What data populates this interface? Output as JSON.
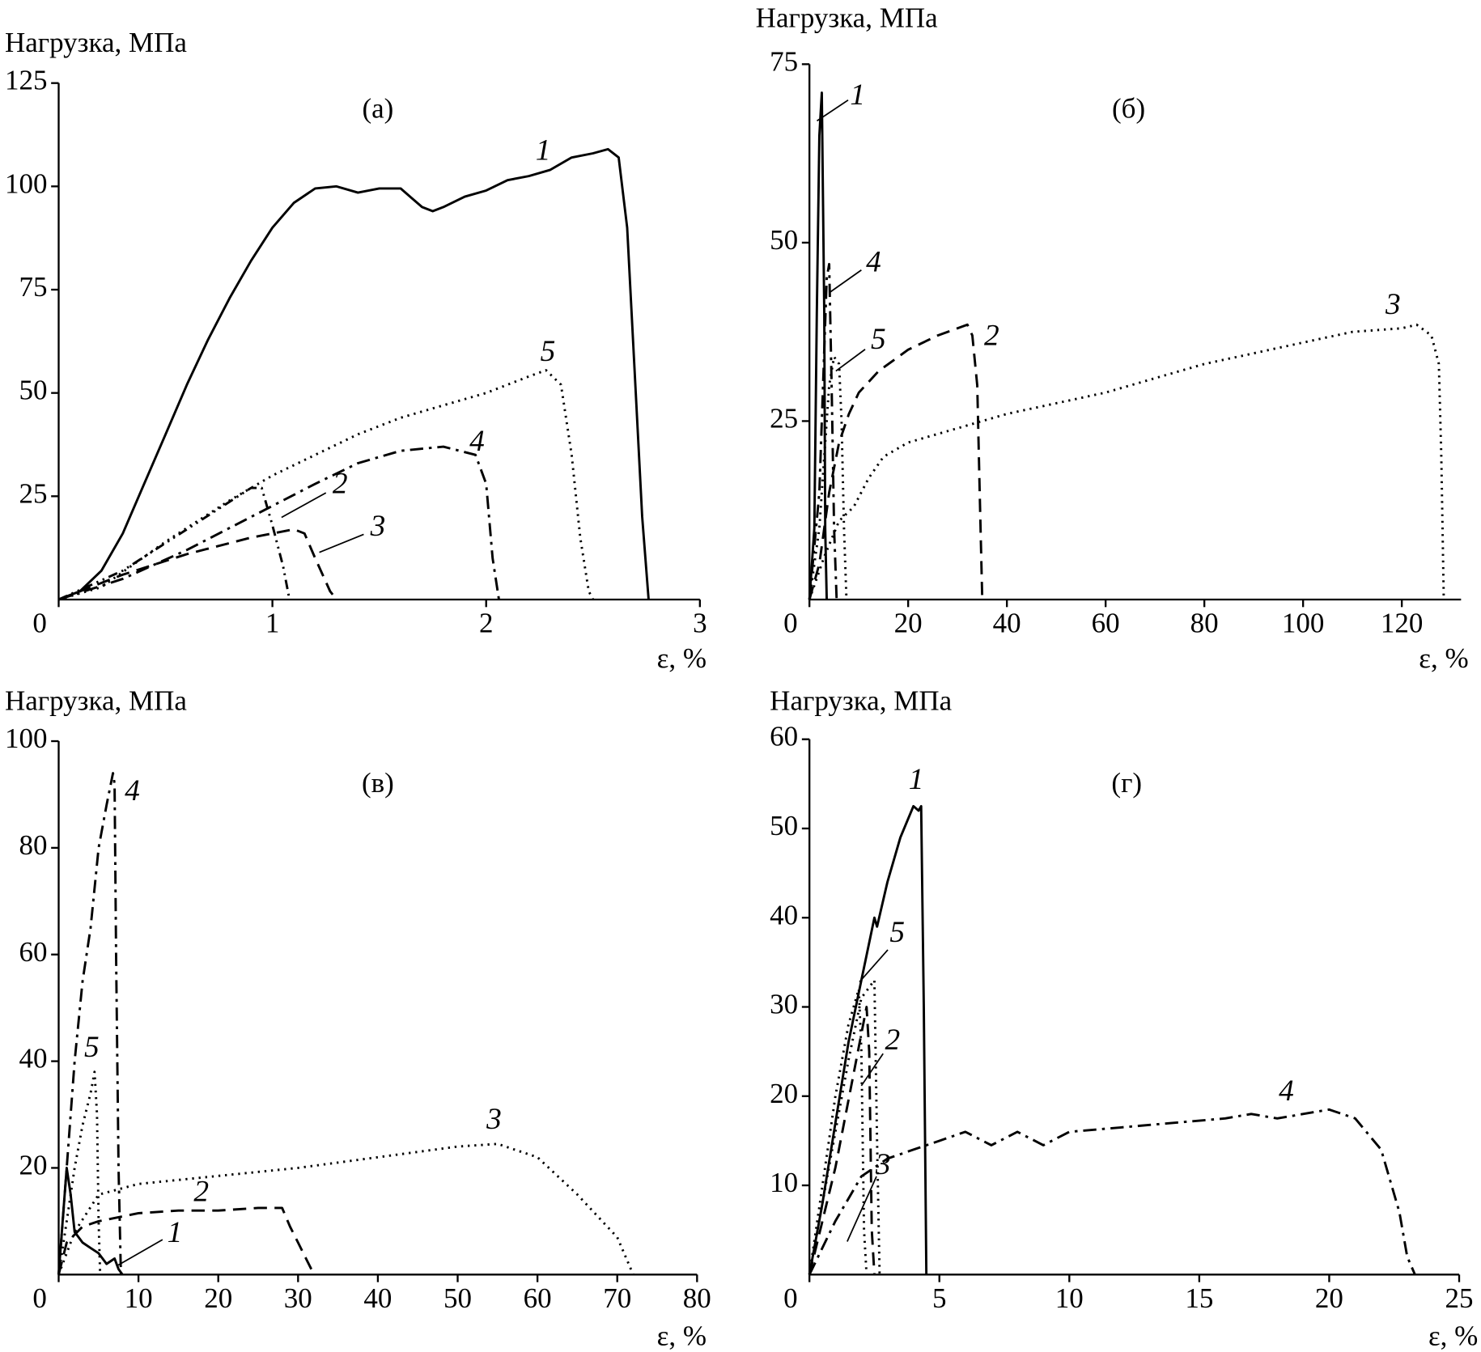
{
  "chart_data": [
    {
      "type": "line",
      "title": "(а)",
      "y_label": "Нагрузка, МПа",
      "x_label": "ε, %",
      "xlim": [
        0,
        3
      ],
      "ylim": [
        0,
        125
      ],
      "xticks": [
        0,
        1,
        2,
        3
      ],
      "yticks": [
        25,
        50,
        75,
        100,
        125
      ],
      "series": [
        {
          "name": "1",
          "color": "#000000",
          "style": "solid",
          "x": [
            0,
            0.1,
            0.2,
            0.3,
            0.4,
            0.5,
            0.6,
            0.7,
            0.8,
            0.9,
            1.0,
            1.1,
            1.2,
            1.3,
            1.4,
            1.5,
            1.6,
            1.7,
            1.75,
            1.8,
            1.9,
            2.0,
            2.1,
            2.2,
            2.3,
            2.4,
            2.5,
            2.57,
            2.62,
            2.66,
            2.7,
            2.73,
            2.76
          ],
          "values": [
            0,
            2,
            7,
            16,
            28,
            40,
            52,
            63,
            73,
            82,
            90,
            96,
            99.5,
            100,
            98.5,
            99.5,
            99.5,
            95,
            94,
            95,
            97.5,
            99,
            101.5,
            102.5,
            104,
            107,
            108,
            109,
            107,
            90,
            50,
            20,
            0
          ]
        },
        {
          "name": "2",
          "color": "#000000",
          "style": "dashdotdot",
          "x": [
            0,
            0.3,
            0.6,
            0.9,
            0.95,
            1.0,
            1.05,
            1.08
          ],
          "values": [
            0,
            7,
            17,
            27,
            27,
            18,
            8,
            0
          ]
        },
        {
          "name": "3",
          "color": "#000000",
          "style": "dashed",
          "x": [
            0,
            0.3,
            0.6,
            0.9,
            1.1,
            1.15,
            1.2,
            1.27,
            1.3
          ],
          "values": [
            0,
            6,
            11,
            15,
            17,
            16,
            10,
            2,
            0
          ]
        },
        {
          "name": "4",
          "color": "#000000",
          "style": "dashdot",
          "x": [
            0,
            0.3,
            0.6,
            0.9,
            1.2,
            1.4,
            1.6,
            1.8,
            1.95,
            2.0,
            2.03,
            2.06
          ],
          "values": [
            0,
            5,
            12,
            20,
            28,
            33,
            36,
            37,
            35,
            28,
            10,
            0
          ]
        },
        {
          "name": "5",
          "color": "#000000",
          "style": "dotted",
          "x": [
            0,
            0.2,
            0.5,
            0.8,
            1.0,
            1.2,
            1.4,
            1.6,
            1.8,
            2.0,
            2.2,
            2.28,
            2.35,
            2.4,
            2.44,
            2.48,
            2.5
          ],
          "values": [
            0,
            3,
            14,
            24,
            30,
            35,
            40,
            44,
            47,
            50,
            54,
            55.5,
            52,
            35,
            15,
            2,
            0
          ]
        }
      ]
    },
    {
      "type": "line",
      "title": "(б)",
      "y_label": "Нагрузка, МПа",
      "x_label": "ε, %",
      "xlim": [
        0,
        132
      ],
      "ylim": [
        0,
        75
      ],
      "xticks": [
        0,
        20,
        40,
        60,
        80,
        100,
        120
      ],
      "yticks": [
        25,
        50,
        75
      ],
      "series": [
        {
          "name": "1",
          "color": "#000000",
          "style": "solid",
          "x": [
            0,
            1,
            1.5,
            2,
            2.5,
            3,
            3.2,
            3.5
          ],
          "values": [
            0,
            10,
            40,
            65,
            71,
            40,
            10,
            0
          ]
        },
        {
          "name": "2",
          "color": "#000000",
          "style": "dashed",
          "x": [
            0,
            2,
            4,
            6,
            8,
            10,
            14,
            20,
            26,
            30,
            32,
            33,
            34,
            34.5,
            35
          ],
          "values": [
            0,
            5,
            15,
            22,
            26,
            29,
            32,
            35,
            37,
            38,
            38.5,
            37,
            30,
            15,
            0
          ]
        },
        {
          "name": "3",
          "color": "#000000",
          "style": "dotted",
          "x": [
            0,
            3,
            6,
            9,
            12,
            15,
            20,
            30,
            40,
            50,
            60,
            70,
            80,
            90,
            100,
            110,
            120,
            123,
            126,
            127.5,
            128,
            128.5
          ],
          "values": [
            0,
            6,
            11,
            13,
            17,
            20,
            22,
            24,
            26,
            27.5,
            29,
            31,
            33,
            34.5,
            36,
            37.5,
            38,
            38.5,
            37,
            33,
            20,
            0
          ]
        },
        {
          "name": "4",
          "color": "#000000",
          "style": "dashdot",
          "x": [
            0,
            2,
            3,
            3.5,
            4,
            4.5,
            5,
            5.5
          ],
          "values": [
            0,
            15,
            35,
            45,
            47,
            30,
            10,
            0
          ]
        },
        {
          "name": "5",
          "color": "#000000",
          "style": "dotted",
          "x": [
            0,
            2,
            4,
            5,
            6,
            6.5,
            7,
            7.5
          ],
          "values": [
            0,
            10,
            30,
            34,
            33,
            25,
            10,
            0
          ]
        }
      ]
    },
    {
      "type": "line",
      "title": "(в)",
      "y_label": "Нагрузка, МПа",
      "x_label": "ε, %",
      "xlim": [
        0,
        80
      ],
      "ylim": [
        0,
        100
      ],
      "xticks": [
        0,
        10,
        20,
        30,
        40,
        50,
        60,
        70,
        80
      ],
      "yticks": [
        20,
        40,
        60,
        80,
        100
      ],
      "series": [
        {
          "name": "1",
          "color": "#000000",
          "style": "solid",
          "x": [
            0,
            0.5,
            1,
            1.5,
            2,
            3,
            4,
            5,
            6,
            7,
            7.5,
            8
          ],
          "values": [
            0,
            10,
            20,
            15,
            8,
            6,
            5,
            4,
            2,
            3,
            1,
            0
          ]
        },
        {
          "name": "2",
          "color": "#000000",
          "style": "dashed",
          "x": [
            0,
            1,
            3,
            5,
            10,
            15,
            20,
            25,
            28,
            29,
            30,
            31,
            32
          ],
          "values": [
            0,
            6,
            9,
            10,
            11.5,
            12,
            12,
            12.5,
            12.5,
            9,
            6,
            3,
            0
          ]
        },
        {
          "name": "3",
          "color": "#000000",
          "style": "dotted",
          "x": [
            0,
            2,
            5,
            10,
            20,
            30,
            40,
            50,
            55,
            60,
            65,
            70,
            72
          ],
          "values": [
            0,
            8,
            15,
            17,
            18.5,
            20,
            22,
            24,
            24.5,
            22,
            15,
            7,
            0
          ]
        },
        {
          "name": "4",
          "color": "#000000",
          "style": "dashdot",
          "x": [
            0,
            1,
            2,
            3,
            4,
            5,
            6,
            6.8,
            7,
            7.2,
            7.5,
            7.8
          ],
          "values": [
            0,
            20,
            40,
            55,
            65,
            80,
            88,
            94,
            92,
            60,
            20,
            0
          ]
        },
        {
          "name": "5",
          "color": "#000000",
          "style": "dotted",
          "x": [
            0,
            1,
            2,
            3,
            4,
            4.5,
            4.8,
            5,
            5.2
          ],
          "values": [
            0,
            10,
            20,
            28,
            34,
            38,
            30,
            10,
            0
          ]
        }
      ]
    },
    {
      "type": "line",
      "title": "(г)",
      "y_label": "Нагрузка, МПа",
      "x_label": "ε, %",
      "xlim": [
        0,
        25
      ],
      "ylim": [
        0,
        60
      ],
      "xticks": [
        0,
        5,
        10,
        15,
        20,
        25
      ],
      "yticks": [
        10,
        20,
        30,
        40,
        50,
        60
      ],
      "series": [
        {
          "name": "1",
          "color": "#000000",
          "style": "solid",
          "x": [
            0,
            0.5,
            1,
            1.5,
            2,
            2.5,
            2.6,
            3,
            3.5,
            4,
            4.2,
            4.3,
            4.4,
            4.5
          ],
          "values": [
            0,
            8,
            17,
            26,
            33,
            40,
            39,
            44,
            49,
            52.5,
            52,
            52.5,
            30,
            0
          ]
        },
        {
          "name": "2",
          "color": "#000000",
          "style": "dashed",
          "x": [
            0,
            1,
            1.8,
            2.2,
            2.3,
            2.4,
            2.5
          ],
          "values": [
            0,
            12,
            24,
            30,
            25,
            5,
            0
          ]
        },
        {
          "name": "3",
          "color": "#000000",
          "style": "dotted",
          "x": [
            0,
            0.5,
            1,
            1.5,
            1.9,
            2.0,
            2.1,
            2.2
          ],
          "values": [
            0,
            10,
            20,
            28,
            32,
            25,
            5,
            0
          ]
        },
        {
          "name": "4",
          "color": "#000000",
          "style": "dashdot",
          "x": [
            0,
            1,
            2,
            3,
            4,
            5,
            6,
            7,
            8,
            9,
            10,
            12,
            14,
            16,
            17,
            18,
            20,
            21,
            22,
            22.7,
            23,
            23.3
          ],
          "values": [
            0,
            6,
            11,
            13,
            14,
            15,
            16,
            14.5,
            16,
            14.5,
            16,
            16.5,
            17,
            17.5,
            18,
            17.5,
            18.5,
            17.5,
            14,
            7,
            2,
            0
          ]
        },
        {
          "name": "5",
          "color": "#000000",
          "style": "dotted",
          "x": [
            0,
            0.5,
            1,
            1.5,
            2,
            2.5,
            2.6,
            2.7
          ],
          "values": [
            0,
            8,
            16,
            24,
            31,
            33,
            15,
            0
          ]
        }
      ]
    }
  ]
}
